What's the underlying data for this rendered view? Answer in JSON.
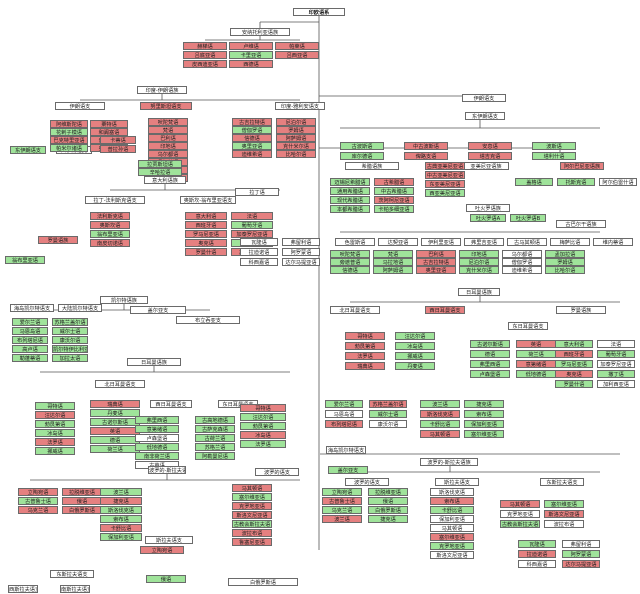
{
  "root": "印欧语系",
  "colors": {
    "extinct": "#e58080",
    "living": "#9fe39a",
    "group": "#ffffff"
  },
  "anatolian": {
    "branch": "安纳托利亚语族",
    "members": [
      "赫梯语",
      "卢维语",
      "帕莱语",
      "吕底亚语",
      "卡里亚语",
      "吕西亚语",
      "皮西迪亚语",
      "西德语"
    ]
  },
  "indo_iranian": {
    "branch": "印度-伊朗语族",
    "iranian": {
      "branch": "伊朗语支",
      "east": "东伊朗语支",
      "west": "西伊朗语支",
      "east_members": [
        "阿维斯陀语",
        "粟特语",
        "花剌子模语",
        "和阗塞语",
        "巴克特里亚语",
        "普什图语",
        "帕米尔诸语",
        "奥塞梯语"
      ],
      "west_members": [
        "古波斯语",
        "中古波斯语",
        "安息语",
        "波斯语",
        "库尔德语",
        "俾路支语",
        "塔吉克语",
        "塔利什语"
      ]
    },
    "nuristani": {
      "branch": "努里斯坦语支",
      "members": [
        "卡蒂语",
        "普拉孙语"
      ]
    },
    "indo_aryan": {
      "branch": "印度-雅利安语支",
      "members": [
        "吠陀梵语",
        "梵语",
        "巴利语",
        "印地语",
        "乌尔都语",
        "孟加拉语",
        "旁遮普语",
        "马拉地语",
        "古吉拉特语",
        "尼泊尔语",
        "僧伽罗语",
        "罗姆语",
        "信德语",
        "阿萨姆语",
        "奥里亚语",
        "克什米尔语",
        "迪维希语",
        "比哈尔语",
        "拉贾斯坦语",
        "辛哈拉语"
      ]
    }
  },
  "hellenic": {
    "branch": "希腊语族",
    "members": [
      "迈锡尼希腊语",
      "古希腊语",
      "通用希腊语",
      "中古希腊语",
      "现代希腊语",
      "茨阿柯尼亚语",
      "本都希腊语",
      "卡帕多细亚语"
    ]
  },
  "armenian": {
    "branch": "亚美尼亚语族",
    "members": [
      "古典亚美尼亚语",
      "中古亚美尼亚语",
      "东亚美尼亚语",
      "西亚美尼亚语"
    ]
  },
  "albanian": {
    "branch": "阿尔巴尼亚语族",
    "members": [
      "盖格语",
      "托斯克语",
      "阿尔伯雷什语"
    ]
  },
  "italic": {
    "branch": "意大利语族",
    "latino_faliscan": "拉丁-法利斯克语支",
    "osco_umbrian": "奥斯坎-翁布里亚语支",
    "latin": "拉丁语",
    "romance": "罗曼语族",
    "members": [
      "法利斯克语",
      "奥斯坎语",
      "翁布里亚语",
      "南皮切诺语",
      "意大利语",
      "法语",
      "西班牙语",
      "葡萄牙语",
      "罗马尼亚语",
      "加泰罗尼亚语",
      "奥克语",
      "撒丁语",
      "罗曼什语",
      "加利西亚语",
      "瓦隆语",
      "弗留利语",
      "拉迪诺语",
      "阿罗蒙语",
      "科西嘉语",
      "达尔马提亚语"
    ]
  },
  "celtic": {
    "branch": "凯尔特语族",
    "insular": "海岛凯尔特语支",
    "continental": "大陆凯尔特语支",
    "goidelic": "盖尔亚支",
    "brythonic": "布立吞亚支",
    "members": [
      "爱尔兰语",
      "苏格兰盖尔语",
      "马恩岛语",
      "威尔士语",
      "布列塔尼语",
      "康沃尔语",
      "高卢语",
      "凯尔特伊比利亚语",
      "勒蓬蒂语",
      "加拉太语"
    ]
  },
  "germanic": {
    "branch": "日耳曼语族",
    "north": "北日耳曼语支",
    "west": "西日耳曼语支",
    "east": "东日耳曼语支",
    "members": [
      "哥特语",
      "汪达尔语",
      "勃艮第语",
      "冰岛语",
      "法罗语",
      "挪威语",
      "瑞典语",
      "丹麦语",
      "古诺尔斯语",
      "英语",
      "德语",
      "荷兰语",
      "弗里西语",
      "意第绪语",
      "卢森堡语",
      "低地德语",
      "南非荷兰语",
      "古英语",
      "古高地德语",
      "古萨克森语",
      "古荷兰语",
      "苏格兰语",
      "阿勒曼尼语"
    ]
  },
  "balto_slavic": {
    "branch": "波罗的-斯拉夫语族",
    "baltic": "波罗的语支",
    "slavic": "斯拉夫语支",
    "east_slavic": "东斯拉夫语支",
    "west_slavic": "西斯拉夫语支",
    "south_slavic": "南斯拉夫语支",
    "members": [
      "立陶宛语",
      "拉脱维亚语",
      "古普鲁士语",
      "俄语",
      "乌克兰语",
      "白俄罗斯语",
      "波兰语",
      "捷克语",
      "斯洛伐克语",
      "索布语",
      "卡舒比语",
      "保加利亚语",
      "马其顿语",
      "塞尔维亚语",
      "克罗地亚语",
      "斯洛文尼亚语",
      "古教会斯拉夫语",
      "波拉布语",
      "鲁塞尼亚语"
    ]
  },
  "tocharian": {
    "branch": "吐火罗语族",
    "members": [
      "吐火罗语A",
      "吐火罗语B"
    ]
  },
  "paleo_balkan": {
    "branch": "古巴尔干语族",
    "members": [
      "色雷斯语",
      "达契亚语",
      "伊利里亚语",
      "弗里吉亚语",
      "古马其顿语",
      "梅萨比语",
      "维内蒂语"
    ]
  }
}
